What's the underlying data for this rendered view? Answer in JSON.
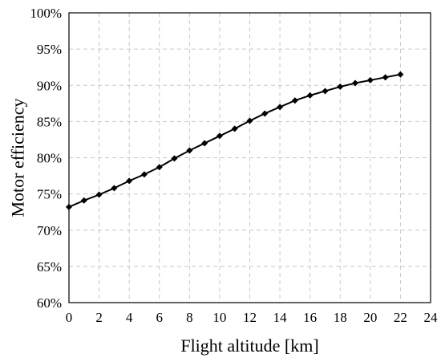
{
  "chart_data": {
    "type": "line",
    "title": "",
    "xlabel": "Flight altitude [km]",
    "ylabel": "Motor efficiency",
    "xlim": [
      0,
      24
    ],
    "ylim": [
      60,
      100
    ],
    "x_ticks": [
      0,
      2,
      4,
      6,
      8,
      10,
      12,
      14,
      16,
      18,
      20,
      22,
      24
    ],
    "y_ticks": [
      60,
      65,
      70,
      75,
      80,
      85,
      90,
      95,
      100
    ],
    "x_tick_labels": [
      "0",
      "2",
      "4",
      "6",
      "8",
      "10",
      "12",
      "14",
      "16",
      "18",
      "20",
      "22",
      "24"
    ],
    "y_tick_labels": [
      "60%",
      "65%",
      "70%",
      "75%",
      "80%",
      "85%",
      "90%",
      "95%",
      "100%"
    ],
    "grid": true,
    "legend": "none",
    "series": [
      {
        "marker": "diamond",
        "color": "#000000",
        "x": [
          0,
          1,
          2,
          3,
          4,
          5,
          6,
          7,
          8,
          9,
          10,
          11,
          12,
          13,
          14,
          15,
          16,
          17,
          18,
          19,
          20,
          21,
          22
        ],
        "y": [
          73.2,
          74.1,
          74.9,
          75.8,
          76.8,
          77.7,
          78.7,
          79.9,
          81.0,
          82.0,
          83.0,
          84.0,
          85.1,
          86.1,
          87.0,
          87.9,
          88.6,
          89.2,
          89.8,
          90.3,
          90.7,
          91.1,
          91.5
        ]
      }
    ]
  }
}
